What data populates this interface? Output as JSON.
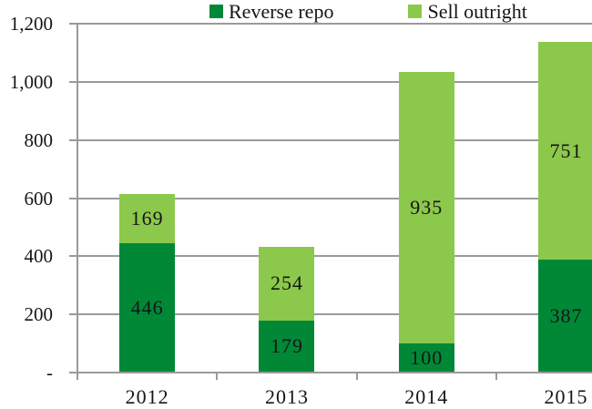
{
  "chart_data": {
    "type": "bar",
    "stacked": true,
    "title": "",
    "categories": [
      "2012",
      "2013",
      "2014",
      "2015"
    ],
    "series": [
      {
        "name": "Reverse repo",
        "color": "#008837",
        "values": [
          446,
          179,
          100,
          387
        ]
      },
      {
        "name": "Sell outright",
        "color": "#8CC84B",
        "values": [
          169,
          254,
          935,
          751
        ]
      }
    ],
    "totals": [
      615,
      433,
      1035,
      1138
    ],
    "ylim": [
      0,
      1200
    ],
    "yticks": [
      {
        "label": "-",
        "value": 0
      },
      {
        "label": "200",
        "value": 200
      },
      {
        "label": "400",
        "value": 400
      },
      {
        "label": "600",
        "value": 600
      },
      {
        "label": "800",
        "value": 800
      },
      {
        "label": "1,000",
        "value": 1000
      },
      {
        "label": "1,200",
        "value": 1200
      }
    ],
    "grid": true,
    "bar_labels": true,
    "legend_position": "top"
  },
  "colors": {
    "grid": "#9A9A9A",
    "text": "#161616",
    "background": "#FFFFFF"
  }
}
